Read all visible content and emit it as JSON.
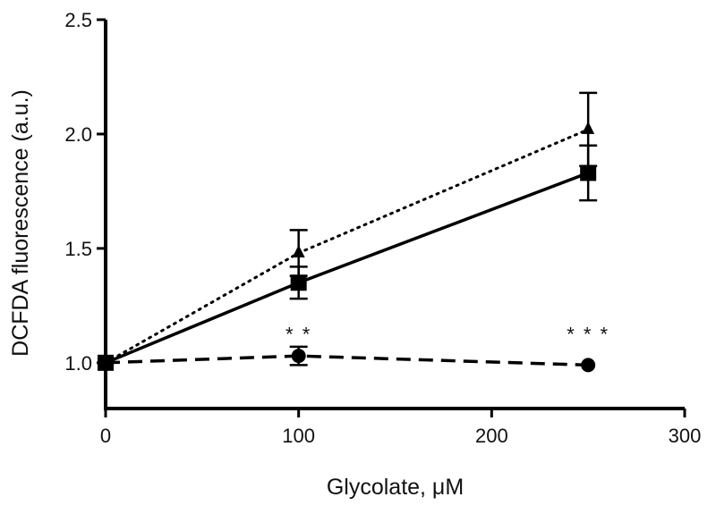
{
  "chart_data": {
    "type": "line",
    "title": "",
    "xlabel": "Glycolate, μM",
    "ylabel": "DCFDA fluorescence (a.u.)",
    "xlim": [
      0,
      300
    ],
    "ylim": [
      0.8,
      2.5
    ],
    "x_ticks": [
      0,
      100,
      200,
      300
    ],
    "x_tick_labels": [
      "0",
      "100",
      "200",
      "300"
    ],
    "y_ticks": [
      1.0,
      1.5,
      2.0,
      2.5
    ],
    "y_tick_labels": [
      "1.0",
      "1.5",
      "2.0",
      "2.5"
    ],
    "grid": false,
    "legend": "none",
    "series": [
      {
        "marker": "triangle",
        "line_style": "dotted",
        "color": "#000000",
        "x": [
          0,
          100,
          250
        ],
        "y": [
          1.0,
          1.48,
          2.02
        ],
        "err": [
          0.0,
          0.1,
          0.16
        ]
      },
      {
        "marker": "square",
        "line_style": "solid",
        "color": "#000000",
        "x": [
          0,
          100,
          250
        ],
        "y": [
          1.0,
          1.35,
          1.83
        ],
        "err": [
          0.0,
          0.07,
          0.12
        ]
      },
      {
        "marker": "circle",
        "line_style": "dashed",
        "color": "#000000",
        "x": [
          0,
          100,
          250
        ],
        "y": [
          1.0,
          1.03,
          0.99
        ],
        "err": [
          0.0,
          0.04,
          0.0
        ]
      }
    ],
    "annotations": [
      {
        "text": "* *",
        "x": 100,
        "y": 1.15
      },
      {
        "text": "* * *",
        "x": 250,
        "y": 1.15
      }
    ]
  }
}
